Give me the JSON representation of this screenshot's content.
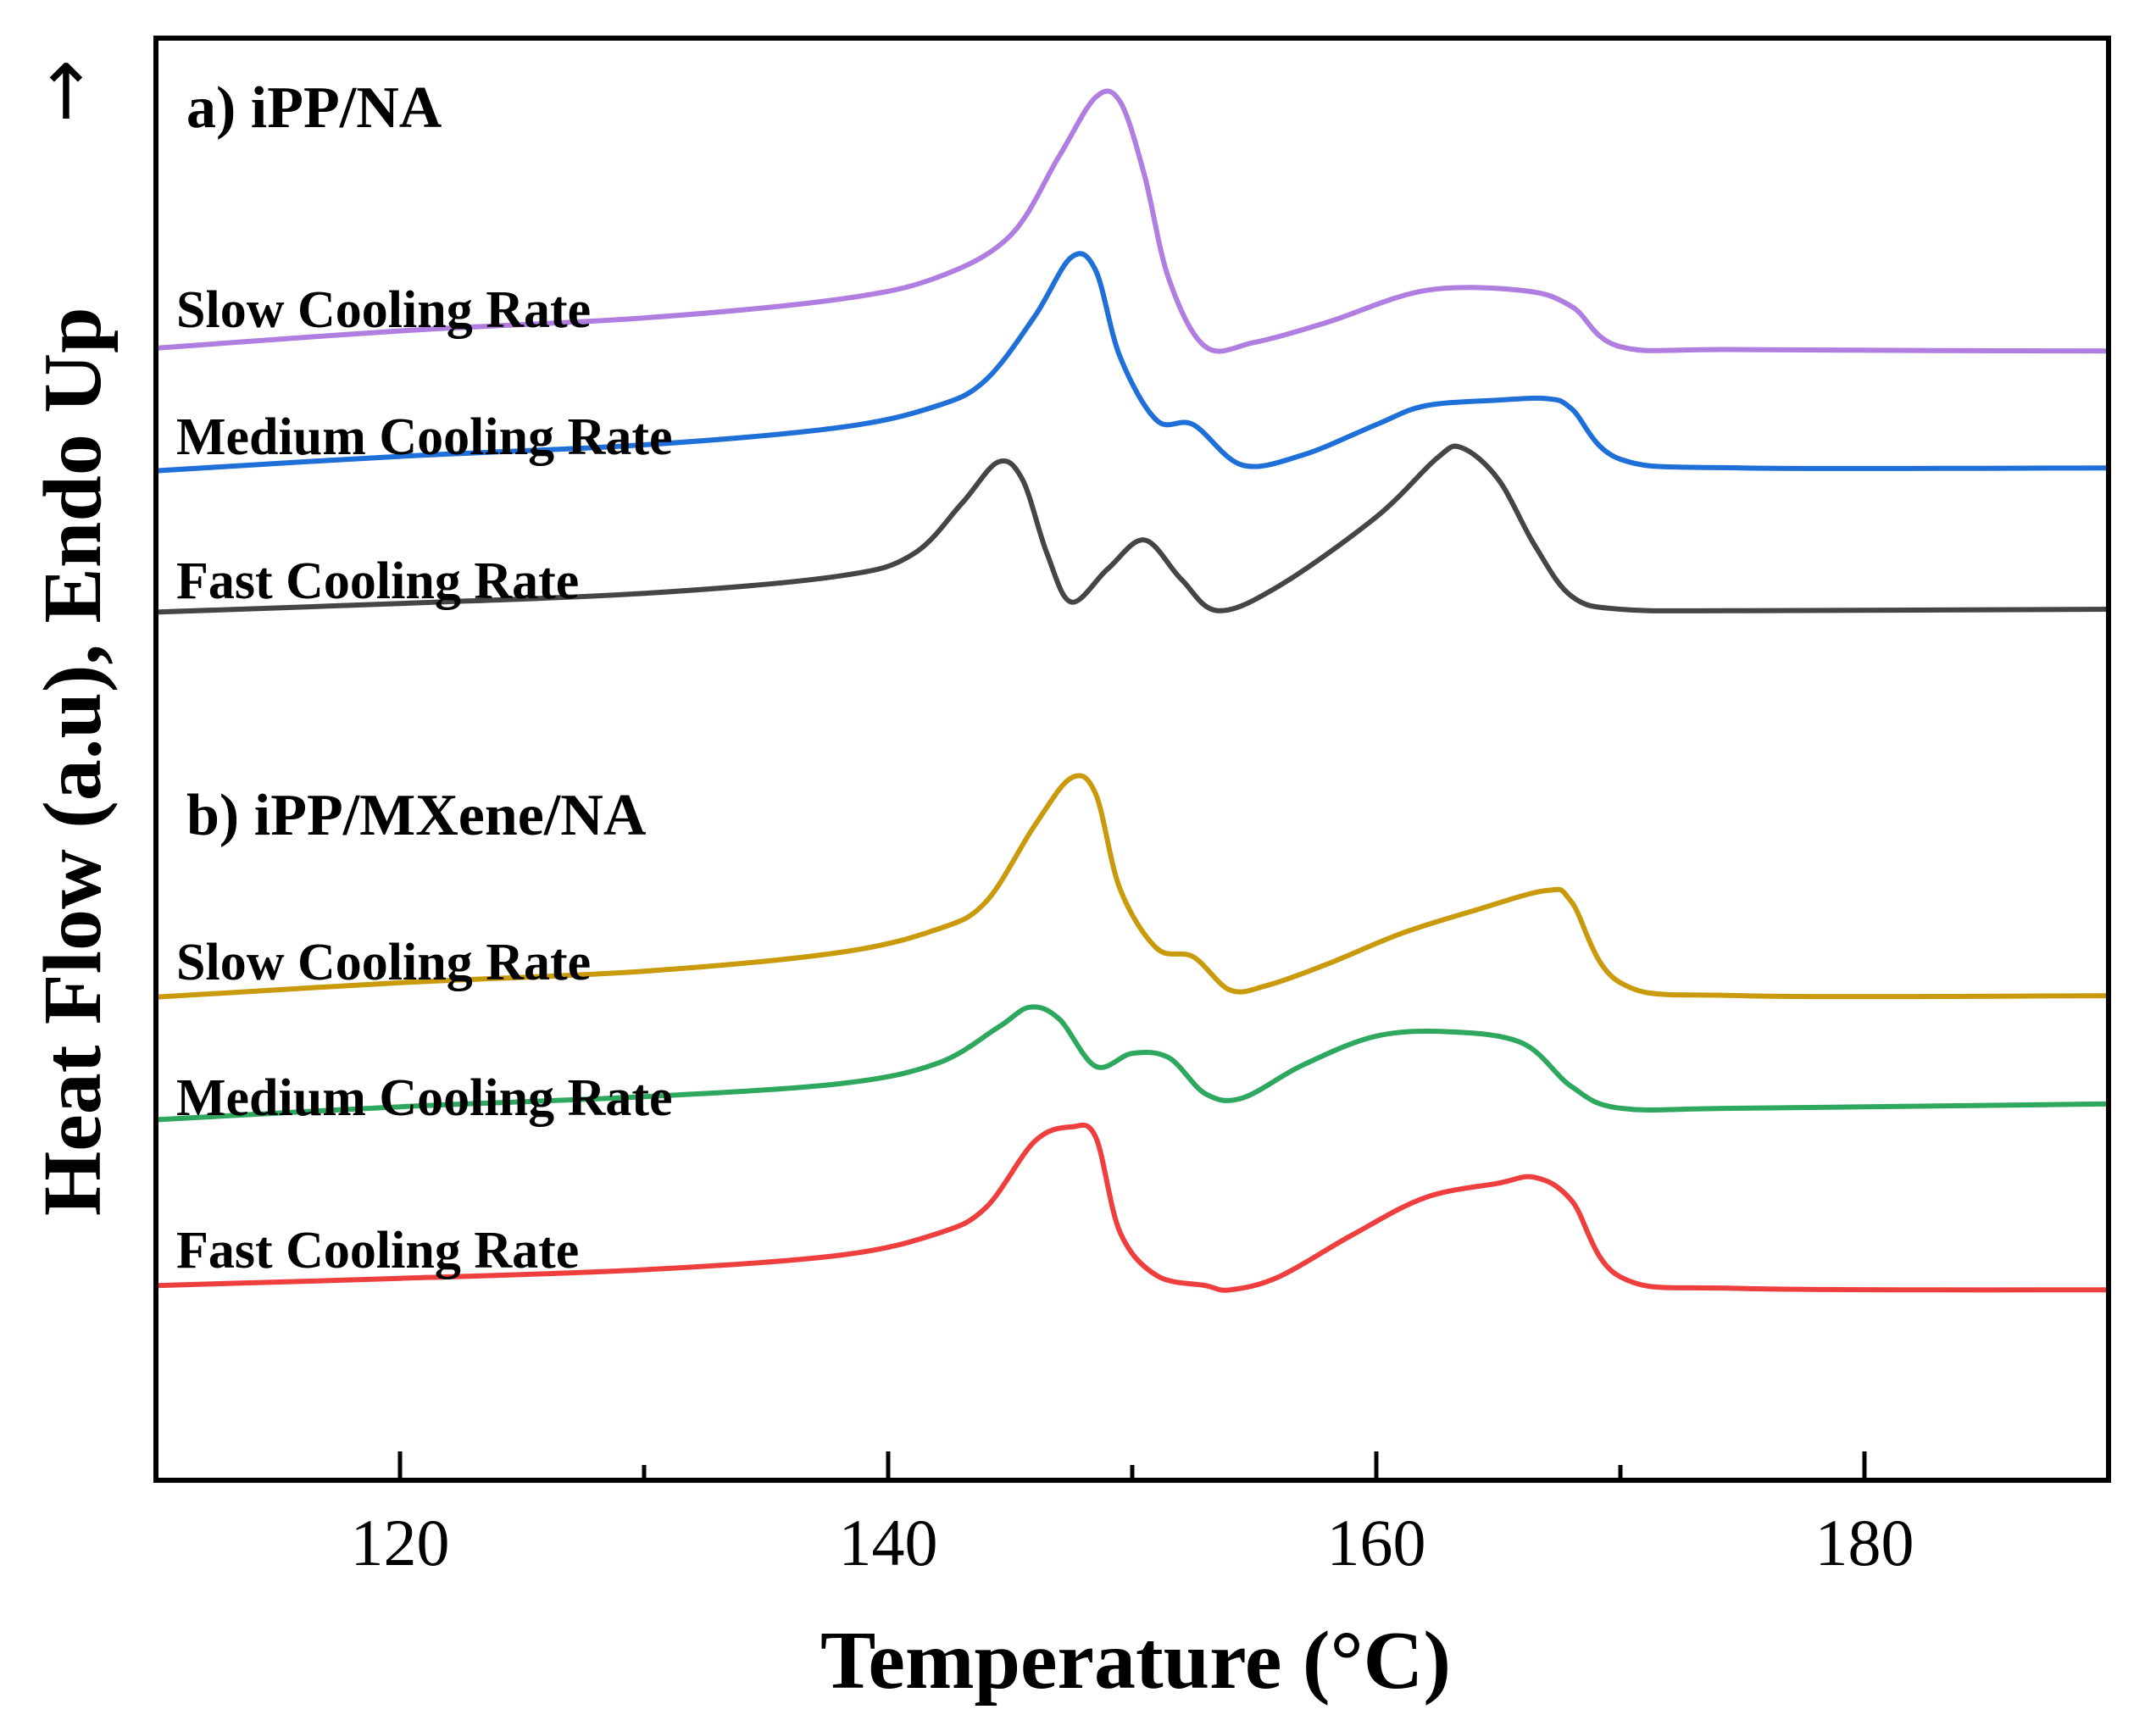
{
  "chart_data": {
    "type": "line",
    "title": "",
    "xlabel": "Temperature (°C)",
    "ylabel": "Heat Flow (a.u), Endo Up",
    "ylabel_arrow": "↑",
    "xlim": [
      110,
      190
    ],
    "ylim": [
      0,
      100
    ],
    "x_ticks": [
      120,
      140,
      160,
      180
    ],
    "x_minor_ticks": [
      130,
      150,
      170
    ],
    "y_ticks_shown": false,
    "grid": false,
    "panels": [
      {
        "label": "a) iPP/NA",
        "series_names": [
          "a-slow",
          "a-medium",
          "a-fast"
        ]
      },
      {
        "label": "b) iPP/MXene/NA",
        "series_names": [
          "b-slow",
          "b-medium",
          "b-fast"
        ]
      }
    ],
    "series": [
      {
        "name": "a-slow",
        "label": "Slow Cooling Rate",
        "color": "#b07de0",
        "x": [
          110,
          120,
          130,
          138,
          142,
          145,
          147,
          148.5,
          149.5,
          150.5,
          151.5,
          153,
          155,
          158,
          162,
          166,
          168,
          170,
          175,
          190
        ],
        "y": [
          78.5,
          79.7,
          80.6,
          81.9,
          83.4,
          86.3,
          91.8,
          95.9,
          95.6,
          90.5,
          83.3,
          78.6,
          78.9,
          80.3,
          82.5,
          82.5,
          81.4,
          78.6,
          78.4,
          78.3
        ]
      },
      {
        "name": "a-medium",
        "label": "Medium Cooling Rate",
        "color": "#1f6fd8",
        "x": [
          110,
          120,
          130,
          138,
          142,
          144,
          146,
          147.5,
          148.5,
          149.5,
          151,
          152.5,
          154.5,
          157,
          160,
          162,
          165,
          167,
          168,
          170,
          175,
          190
        ],
        "y": [
          70,
          71,
          71.8,
          73,
          74.5,
          76.3,
          80.7,
          84.8,
          83.9,
          77.9,
          73.5,
          73.2,
          70.4,
          71.1,
          73.2,
          74.5,
          74.9,
          75,
          74.3,
          70.8,
          70.2,
          70.2
        ]
      },
      {
        "name": "a-fast",
        "label": "Fast Cooling Rate",
        "color": "#454545",
        "x": [
          110,
          120,
          130,
          138,
          141,
          143,
          144.5,
          145.5,
          146.5,
          147.5,
          149,
          150.5,
          152,
          153.5,
          156,
          160,
          162.5,
          163.5,
          165,
          166.5,
          168,
          170,
          175,
          190
        ],
        "y": [
          60.2,
          60.8,
          61.5,
          62.7,
          64.2,
          67.7,
          70.6,
          69.4,
          64.3,
          60.9,
          63.2,
          65.2,
          62.5,
          60.3,
          62,
          66.8,
          70.9,
          71.6,
          69.4,
          64.8,
          61.3,
          60.4,
          60.3,
          60.4
        ]
      },
      {
        "name": "b-slow",
        "label": "Slow Cooling Rate",
        "color": "#c99a0c",
        "x": [
          110,
          120,
          130,
          138,
          142,
          144,
          146,
          147.5,
          148.5,
          149.5,
          151,
          152.5,
          154,
          155.5,
          158,
          161,
          164,
          167,
          168,
          170,
          175,
          190
        ],
        "y": [
          33.5,
          34.5,
          35.3,
          36.6,
          38.2,
          40.1,
          45.4,
          48.7,
          47.6,
          41,
          36.9,
          36.3,
          34,
          34.3,
          35.8,
          37.9,
          39.5,
          40.9,
          40.1,
          34.5,
          33.6,
          33.6
        ]
      },
      {
        "name": "b-medium",
        "label": "Medium Cooling Rate",
        "color": "#2da85e",
        "x": [
          110,
          120,
          130,
          138,
          142,
          144.5,
          145.8,
          147,
          148.5,
          150,
          151.5,
          153,
          154.5,
          157,
          160,
          163,
          166,
          168,
          170,
          175,
          190
        ],
        "y": [
          25,
          25.9,
          26.6,
          27.5,
          28.9,
          31.4,
          32.8,
          32,
          28.7,
          29.6,
          29.3,
          26.8,
          26.5,
          28.8,
          30.8,
          31.1,
          30.3,
          27.3,
          25.8,
          25.8,
          26.1
        ]
      },
      {
        "name": "b-fast",
        "label": "Fast Cooling Rate",
        "color": "#ef3e3e",
        "x": [
          110,
          120,
          130,
          138,
          142,
          144,
          146,
          147.5,
          148.5,
          149.5,
          151,
          153,
          154,
          156,
          159,
          162,
          165,
          166.5,
          168,
          170,
          175,
          190
        ],
        "y": [
          13.5,
          14,
          14.6,
          15.6,
          17.1,
          18.9,
          23.5,
          24.5,
          23.8,
          17.2,
          14.2,
          13.5,
          13.2,
          14.1,
          17,
          19.6,
          20.6,
          21,
          19.4,
          14.1,
          13.3,
          13.2
        ]
      }
    ]
  }
}
